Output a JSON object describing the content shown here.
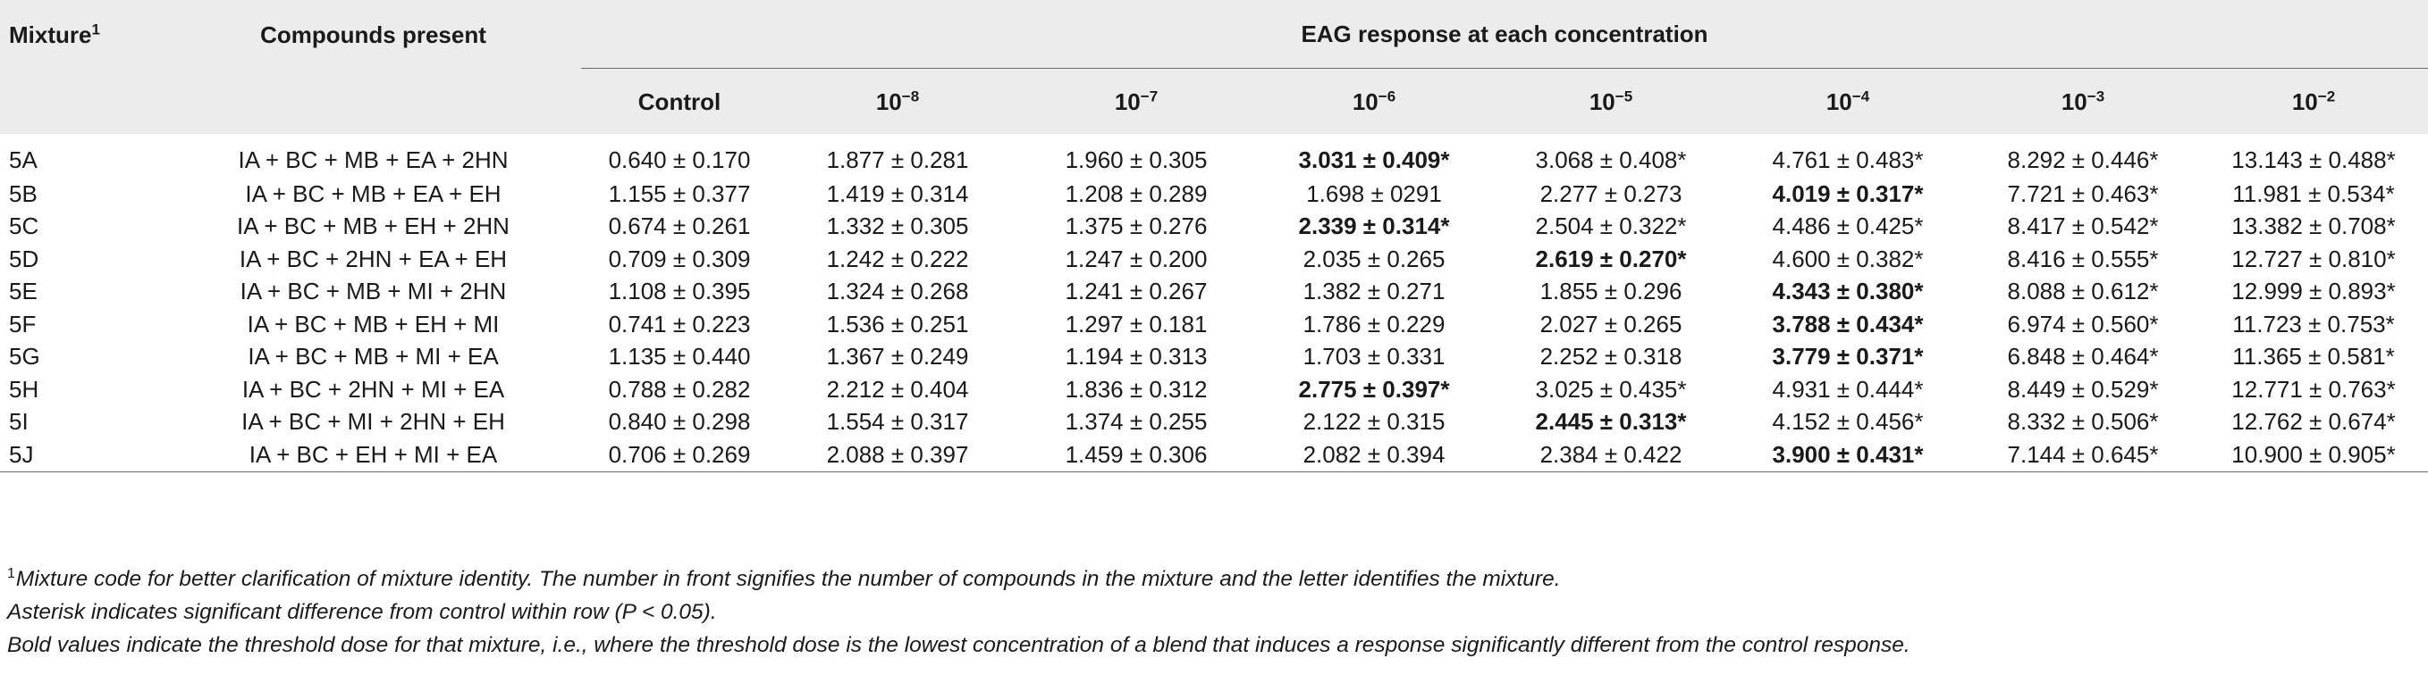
{
  "header": {
    "mixture_label": "Mixture",
    "mixture_sup": "1",
    "compounds_label": "Compounds present",
    "eag_label": "EAG response at each concentration",
    "columns": [
      {
        "base": "Control",
        "exp": ""
      },
      {
        "base": "10",
        "exp": "−8"
      },
      {
        "base": "10",
        "exp": "−7"
      },
      {
        "base": "10",
        "exp": "−6"
      },
      {
        "base": "10",
        "exp": "−5"
      },
      {
        "base": "10",
        "exp": "−4"
      },
      {
        "base": "10",
        "exp": "−3"
      },
      {
        "base": "10",
        "exp": "−2"
      }
    ]
  },
  "rows": [
    {
      "mixture": "5A",
      "compounds": "IA + BC + MB + EA + 2HN",
      "values": [
        "0.640 ± 0.170",
        "1.877 ± 0.281",
        "1.960 ± 0.305",
        "3.031 ± 0.409*",
        "3.068 ± 0.408*",
        "4.761 ± 0.483*",
        "8.292 ± 0.446*",
        "13.143 ± 0.488*"
      ],
      "bold": [
        3
      ]
    },
    {
      "mixture": "5B",
      "compounds": "IA + BC + MB + EA + EH",
      "values": [
        "1.155 ± 0.377",
        "1.419 ± 0.314",
        "1.208 ± 0.289",
        "1.698 ± 0291",
        "2.277 ± 0.273",
        "4.019 ± 0.317*",
        "7.721 ± 0.463*",
        "11.981 ± 0.534*"
      ],
      "bold": [
        5
      ]
    },
    {
      "mixture": "5C",
      "compounds": "IA + BC + MB + EH + 2HN",
      "values": [
        "0.674 ± 0.261",
        "1.332 ± 0.305",
        "1.375 ± 0.276",
        "2.339 ± 0.314*",
        "2.504 ± 0.322*",
        "4.486 ± 0.425*",
        "8.417 ± 0.542*",
        "13.382 ± 0.708*"
      ],
      "bold": [
        3
      ]
    },
    {
      "mixture": "5D",
      "compounds": "IA + BC + 2HN + EA + EH",
      "values": [
        "0.709 ± 0.309",
        "1.242 ± 0.222",
        "1.247 ± 0.200",
        "2.035 ± 0.265",
        "2.619 ± 0.270*",
        "4.600 ± 0.382*",
        "8.416 ± 0.555*",
        "12.727 ± 0.810*"
      ],
      "bold": [
        4
      ]
    },
    {
      "mixture": "5E",
      "compounds": "IA + BC + MB + MI + 2HN",
      "values": [
        "1.108 ± 0.395",
        "1.324 ± 0.268",
        "1.241 ± 0.267",
        "1.382 ± 0.271",
        "1.855 ± 0.296",
        "4.343 ± 0.380*",
        "8.088 ± 0.612*",
        "12.999 ± 0.893*"
      ],
      "bold": [
        5
      ]
    },
    {
      "mixture": "5F",
      "compounds": "IA + BC + MB + EH + MI",
      "values": [
        "0.741 ± 0.223",
        "1.536 ± 0.251",
        "1.297 ± 0.181",
        "1.786 ± 0.229",
        "2.027 ± 0.265",
        "3.788 ± 0.434*",
        "6.974 ± 0.560*",
        "11.723 ± 0.753*"
      ],
      "bold": [
        5
      ]
    },
    {
      "mixture": "5G",
      "compounds": "IA + BC + MB + MI + EA",
      "values": [
        "1.135 ± 0.440",
        "1.367 ± 0.249",
        "1.194 ± 0.313",
        "1.703 ± 0.331",
        "2.252 ± 0.318",
        "3.779 ± 0.371*",
        "6.848 ± 0.464*",
        "11.365 ± 0.581*"
      ],
      "bold": [
        5
      ]
    },
    {
      "mixture": "5H",
      "compounds": "IA + BC + 2HN + MI + EA",
      "values": [
        "0.788 ± 0.282",
        "2.212 ± 0.404",
        "1.836 ± 0.312",
        "2.775 ± 0.397*",
        "3.025 ± 0.435*",
        "4.931 ± 0.444*",
        "8.449 ± 0.529*",
        "12.771 ± 0.763*"
      ],
      "bold": [
        3
      ]
    },
    {
      "mixture": "5I",
      "compounds": "IA + BC + MI + 2HN + EH",
      "values": [
        "0.840 ± 0.298",
        "1.554 ± 0.317",
        "1.374 ± 0.255",
        "2.122 ± 0.315",
        "2.445 ± 0.313*",
        "4.152 ± 0.456*",
        "8.332 ± 0.506*",
        "12.762 ± 0.674*"
      ],
      "bold": [
        4
      ]
    },
    {
      "mixture": "5J",
      "compounds": "IA + BC + EH + MI + EA",
      "values": [
        "0.706 ± 0.269",
        "2.088 ± 0.397",
        "1.459 ± 0.306",
        "2.082 ± 0.394",
        "2.384 ± 0.422",
        "3.900 ± 0.431*",
        "7.144 ± 0.645*",
        "10.900 ± 0.905*"
      ],
      "bold": [
        5
      ]
    }
  ],
  "footnotes": {
    "note1_sup": "1",
    "note1": "Mixture code for better clarification of mixture identity. The number in front signifies the number of compounds in the mixture and the letter identifies the mixture.",
    "note2": "Asterisk indicates significant difference from control within row (P < 0.05).",
    "note3": "Bold values indicate the threshold dose for that mixture, i.e., where the threshold dose is the lowest concentration of a blend that induces a response significantly different from the control response."
  }
}
